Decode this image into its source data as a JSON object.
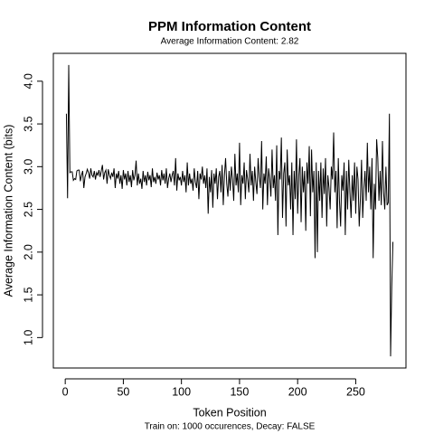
{
  "chart_data": {
    "type": "line",
    "title": "PPM Information Content",
    "subtitle": "Average Information Content: 2.82",
    "xlabel": "Token Position",
    "ylabel": "Average Information Content (bits)",
    "caption": "Train on: 1000 occurences, Decay: FALSE",
    "x": [
      1,
      2,
      3,
      4,
      5,
      6,
      7,
      8,
      9,
      10,
      11,
      12,
      13,
      14,
      15,
      16,
      17,
      18,
      19,
      20,
      21,
      22,
      23,
      24,
      25,
      26,
      27,
      28,
      29,
      30,
      31,
      32,
      33,
      34,
      35,
      36,
      37,
      38,
      39,
      40,
      41,
      42,
      43,
      44,
      45,
      46,
      47,
      48,
      49,
      50,
      51,
      52,
      53,
      54,
      55,
      56,
      57,
      58,
      59,
      60,
      61,
      62,
      63,
      64,
      65,
      66,
      67,
      68,
      69,
      70,
      71,
      72,
      73,
      74,
      75,
      76,
      77,
      78,
      79,
      80,
      81,
      82,
      83,
      84,
      85,
      86,
      87,
      88,
      89,
      90,
      91,
      92,
      93,
      94,
      95,
      96,
      97,
      98,
      99,
      100,
      101,
      102,
      103,
      104,
      105,
      106,
      107,
      108,
      109,
      110,
      111,
      112,
      113,
      114,
      115,
      116,
      117,
      118,
      119,
      120,
      121,
      122,
      123,
      124,
      125,
      126,
      127,
      128,
      129,
      130,
      131,
      132,
      133,
      134,
      135,
      136,
      137,
      138,
      139,
      140,
      141,
      142,
      143,
      144,
      145,
      146,
      147,
      148,
      149,
      150,
      151,
      152,
      153,
      154,
      155,
      156,
      157,
      158,
      159,
      160,
      161,
      162,
      163,
      164,
      165,
      166,
      167,
      168,
      169,
      170,
      171,
      172,
      173,
      174,
      175,
      176,
      177,
      178,
      179,
      180,
      181,
      182,
      183,
      184,
      185,
      186,
      187,
      188,
      189,
      190,
      191,
      192,
      193,
      194,
      195,
      196,
      197,
      198,
      199,
      200,
      201,
      202,
      203,
      204,
      205,
      206,
      207,
      208,
      209,
      210,
      211,
      212,
      213,
      214,
      215,
      216,
      217,
      218,
      219,
      220,
      221,
      222,
      223,
      224,
      225,
      226,
      227,
      228,
      229,
      230,
      231,
      232,
      233,
      234,
      235,
      236,
      237,
      238,
      239,
      240,
      241,
      242,
      243,
      244,
      245,
      246,
      247,
      248,
      249,
      250,
      251,
      252,
      253,
      254,
      255,
      256,
      257,
      258,
      259,
      260,
      261,
      262,
      263,
      264,
      265,
      266,
      267,
      268,
      269,
      270,
      271,
      272,
      273,
      274,
      275,
      276,
      277,
      278,
      279,
      280,
      281,
      282
    ],
    "series": [
      {
        "name": "Average Information Content",
        "color": "#000000",
        "values": [
          3.62,
          2.63,
          4.19,
          2.93,
          2.94,
          2.94,
          2.84,
          2.86,
          2.85,
          2.95,
          2.96,
          2.96,
          2.83,
          2.9,
          2.95,
          2.75,
          2.88,
          2.92,
          2.97,
          2.93,
          2.86,
          2.98,
          2.9,
          2.88,
          2.95,
          2.85,
          2.93,
          2.9,
          2.96,
          2.88,
          2.95,
          3.02,
          2.85,
          2.93,
          2.96,
          2.8,
          2.97,
          2.9,
          2.86,
          2.93,
          2.88,
          2.98,
          2.75,
          2.92,
          2.86,
          2.95,
          2.8,
          2.9,
          2.74,
          2.96,
          2.85,
          2.92,
          2.78,
          2.95,
          2.82,
          2.9,
          2.76,
          2.96,
          2.84,
          2.9,
          3.07,
          2.78,
          2.92,
          2.8,
          2.86,
          2.74,
          2.95,
          2.82,
          2.9,
          2.78,
          2.94,
          2.84,
          2.9,
          2.76,
          2.98,
          2.82,
          2.88,
          2.8,
          2.93,
          2.85,
          2.9,
          2.78,
          2.96,
          2.84,
          2.92,
          2.8,
          2.98,
          2.75,
          2.86,
          2.92,
          2.82,
          2.9,
          2.95,
          2.78,
          3.1,
          2.72,
          2.92,
          2.84,
          2.88,
          2.78,
          2.95,
          2.82,
          2.9,
          2.7,
          3.05,
          2.78,
          2.92,
          2.8,
          2.86,
          2.72,
          2.98,
          2.82,
          2.75,
          2.95,
          2.62,
          2.92,
          2.85,
          3.0,
          2.8,
          2.9,
          2.75,
          2.98,
          2.45,
          2.88,
          2.7,
          2.96,
          2.52,
          2.92,
          2.8,
          2.98,
          2.62,
          2.88,
          2.95,
          2.7,
          3.02,
          2.55,
          2.9,
          3.1,
          2.8,
          2.65,
          2.95,
          2.72,
          3.0,
          2.85,
          2.6,
          3.15,
          2.78,
          2.92,
          2.7,
          3.28,
          2.55,
          2.9,
          2.8,
          3.05,
          2.62,
          2.96,
          2.85,
          2.7,
          3.15,
          2.78,
          2.95,
          2.6,
          3.0,
          2.82,
          2.68,
          3.1,
          2.88,
          2.75,
          3.3,
          2.5,
          2.92,
          2.8,
          3.12,
          2.55,
          2.98,
          2.85,
          2.65,
          3.2,
          2.75,
          2.9,
          2.6,
          3.25,
          2.2,
          2.95,
          2.85,
          3.34,
          2.4,
          2.92,
          3.05,
          2.3,
          3.2,
          2.78,
          2.9,
          2.5,
          3.05,
          2.2,
          2.95,
          2.62,
          3.32,
          2.45,
          2.9,
          3.1,
          2.35,
          3.0,
          2.7,
          2.95,
          2.25,
          3.05,
          2.8,
          3.24,
          2.42,
          3.2,
          2.7,
          2.95,
          1.93,
          3.05,
          2.0,
          2.95,
          2.6,
          3.05,
          2.4,
          2.98,
          2.68,
          3.1,
          2.3,
          2.9,
          2.75,
          2.5,
          3.0,
          2.85,
          3.4,
          2.7,
          2.95,
          2.28,
          3.1,
          2.6,
          2.3,
          2.9,
          2.72,
          3.05,
          2.2,
          2.95,
          2.5,
          3.08,
          2.7,
          2.4,
          2.9,
          2.6,
          3.05,
          2.45,
          3.0,
          2.85,
          2.3,
          2.62,
          3.08,
          2.4,
          2.75,
          2.95,
          2.6,
          3.28,
          2.7,
          3.0,
          2.5,
          3.1,
          1.93,
          2.8,
          2.5,
          3.32,
          3.1,
          2.6,
          2.95,
          2.55,
          3.3,
          2.7,
          2.5,
          3.0,
          2.55,
          2.58,
          3.62,
          0.78,
          1.6,
          2.12
        ]
      }
    ],
    "xlim": [
      -10.24,
      293.24
    ],
    "ylim": [
      0.644,
      4.326
    ],
    "xticks": [
      0,
      50,
      100,
      150,
      200,
      250
    ],
    "yticks": [
      {
        "value": 1.0,
        "label": "1.0"
      },
      {
        "value": 1.5,
        "label": "1.5"
      },
      {
        "value": 2.0,
        "label": "2.0"
      },
      {
        "value": 2.5,
        "label": "2.5"
      },
      {
        "value": 3.0,
        "label": "3.0"
      },
      {
        "value": 3.5,
        "label": "3.5"
      },
      {
        "value": 4.0,
        "label": "4.0"
      }
    ]
  }
}
